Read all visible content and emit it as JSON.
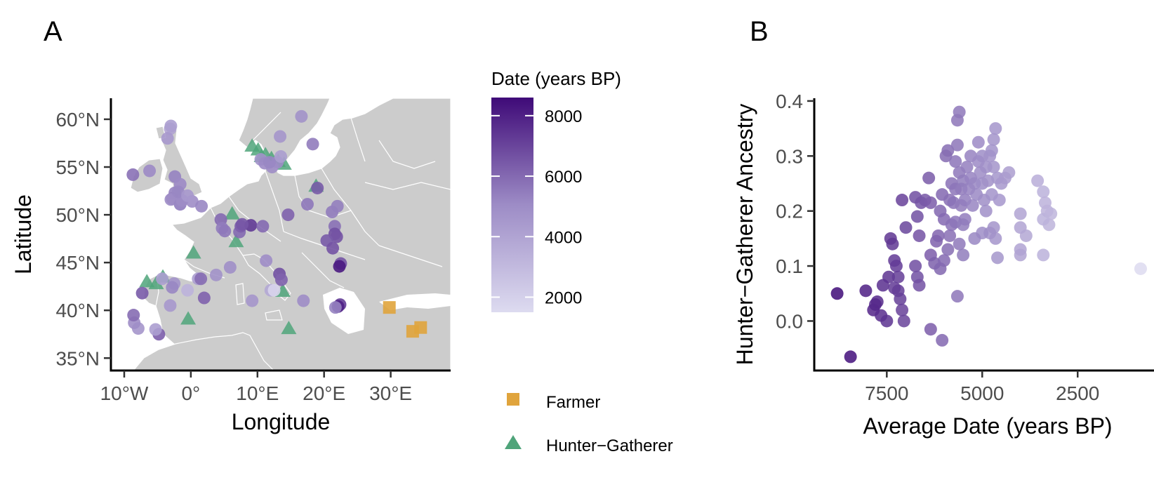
{
  "panels": {
    "a": {
      "letter": "A"
    },
    "b": {
      "letter": "B"
    }
  },
  "chart_data": [
    {
      "type": "scatter",
      "panel": "A",
      "xlabel": "Longitude",
      "ylabel": "Latitude",
      "x_ticks": [
        {
          "value": -10,
          "label": "10°W"
        },
        {
          "value": 0,
          "label": "0°"
        },
        {
          "value": 10,
          "label": "10°E"
        },
        {
          "value": 20,
          "label": "20°E"
        },
        {
          "value": 30,
          "label": "30°E"
        }
      ],
      "y_ticks": [
        {
          "value": 35,
          "label": "35°N"
        },
        {
          "value": 40,
          "label": "40°N"
        },
        {
          "value": 45,
          "label": "45°N"
        },
        {
          "value": 50,
          "label": "50°N"
        },
        {
          "value": 55,
          "label": "55°N"
        },
        {
          "value": 60,
          "label": "60°N"
        }
      ],
      "xlim": [
        -12,
        39
      ],
      "ylim": [
        33.7,
        62.2
      ],
      "background": "map of Europe (land grey #cccccc, borders white)",
      "color_legend": {
        "title": "Date (years BP)",
        "ticks": [
          {
            "value": 2000,
            "label": "2000"
          },
          {
            "value": 4000,
            "label": "4000"
          },
          {
            "value": 6000,
            "label": "6000"
          },
          {
            "value": 8000,
            "label": "8000"
          }
        ],
        "range": [
          1500,
          8600
        ],
        "low_color": "#dddbf0",
        "high_color": "#3f0a78"
      },
      "shape_legend": [
        {
          "label": "Farmer",
          "shape": "square",
          "color": "#e0a43c"
        },
        {
          "label": "Hunter−Gatherer",
          "shape": "triangle",
          "color": "#4fa47a"
        }
      ],
      "series": [
        {
          "name": "Farmer",
          "marker": "square",
          "color": "#e0a43c",
          "points": [
            [
              29.8,
              40.3
            ],
            [
              33.3,
              37.8
            ],
            [
              34.5,
              38.2
            ]
          ]
        },
        {
          "name": "Hunter−Gatherer",
          "marker": "triangle",
          "color": "#4fa47a",
          "points": [
            [
              9.2,
              57.2
            ],
            [
              10.1,
              56.8
            ],
            [
              11.2,
              56.3
            ],
            [
              12.1,
              55.9
            ],
            [
              13.1,
              55.6
            ],
            [
              14.0,
              55.3
            ],
            [
              10.6,
              56.1
            ],
            [
              6.2,
              50.1
            ],
            [
              6.8,
              47.2
            ],
            [
              0.4,
              46.0
            ],
            [
              -4.2,
              43.5
            ],
            [
              -6.6,
              43.0
            ],
            [
              -5.2,
              42.8
            ],
            [
              -0.4,
              39.1
            ],
            [
              14.7,
              38.1
            ],
            [
              18.8,
              53.0
            ],
            [
              13.8,
              42.0
            ]
          ]
        },
        {
          "name": "",
          "marker": "circle",
          "points": [
            [
              -3.1,
              59.0,
              4000
            ],
            [
              -3.5,
              58.0,
              4500
            ],
            [
              -3.0,
              59.3,
              4200
            ],
            [
              -2.4,
              54.0,
              5300
            ],
            [
              -1.6,
              53.2,
              5100
            ],
            [
              -2.4,
              52.3,
              5300
            ],
            [
              -2.8,
              51.7,
              5400
            ],
            [
              -3.0,
              51.6,
              5000
            ],
            [
              -1.6,
              51.1,
              5200
            ],
            [
              0.2,
              51.4,
              5000
            ],
            [
              1.6,
              50.9,
              5200
            ],
            [
              -8.7,
              54.2,
              5800
            ],
            [
              -6.2,
              54.6,
              5100
            ],
            [
              4.5,
              49.5,
              6000
            ],
            [
              4.7,
              48.6,
              5500
            ],
            [
              5.1,
              48.3,
              5600
            ],
            [
              7.3,
              48.2,
              6000
            ],
            [
              7.5,
              48.8,
              6300
            ],
            [
              9.0,
              48.9,
              7300
            ],
            [
              10.8,
              48.8,
              6000
            ],
            [
              7.7,
              49.0,
              6500
            ],
            [
              10.5,
              55.8,
              4700
            ],
            [
              11.1,
              55.4,
              5100
            ],
            [
              12.2,
              55.0,
              5000
            ],
            [
              13.0,
              55.5,
              5000
            ],
            [
              13.5,
              56.1,
              4300
            ],
            [
              11.8,
              55.5,
              5200
            ],
            [
              13.4,
              58.2,
              4600
            ],
            [
              16.6,
              60.3,
              4800
            ],
            [
              18.3,
              57.4,
              5500
            ],
            [
              14.6,
              50.0,
              6200
            ],
            [
              17.5,
              51.1,
              5600
            ],
            [
              19.0,
              52.8,
              6400
            ],
            [
              21.2,
              50.3,
              5500
            ],
            [
              22.0,
              50.9,
              5400
            ],
            [
              21.6,
              48.8,
              5800
            ],
            [
              21.6,
              48.0,
              6700
            ],
            [
              21.9,
              47.7,
              6600
            ],
            [
              20.4,
              47.3,
              6400
            ],
            [
              21.3,
              46.5,
              6600
            ],
            [
              22.5,
              44.9,
              6600
            ],
            [
              22.3,
              44.6,
              8200
            ],
            [
              22.4,
              40.6,
              7200
            ],
            [
              22.1,
              40.4,
              8000
            ],
            [
              21.7,
              40.3,
              5300
            ],
            [
              16.9,
              41.0,
              5000
            ],
            [
              13.3,
              43.8,
              6700
            ],
            [
              13.6,
              43.2,
              6200
            ],
            [
              12.0,
              42.1,
              3800
            ],
            [
              12.5,
              42.1,
              1800
            ],
            [
              11.3,
              45.2,
              5000
            ],
            [
              9.2,
              41.0,
              4600
            ],
            [
              3.8,
              43.7,
              4800
            ],
            [
              5.9,
              44.5,
              4900
            ],
            [
              2.0,
              41.3,
              6200
            ],
            [
              1.1,
              43.3,
              4300
            ],
            [
              1.5,
              43.3,
              5900
            ],
            [
              -0.5,
              42.1,
              3300
            ],
            [
              -2.5,
              42.8,
              4700
            ],
            [
              -2.8,
              42.4,
              5200
            ],
            [
              -3.1,
              40.5,
              4500
            ],
            [
              -4.8,
              37.5,
              6300
            ],
            [
              -5.3,
              38.0,
              4200
            ],
            [
              -7.9,
              38.1,
              4600
            ],
            [
              -8.5,
              38.7,
              5000
            ],
            [
              -8.6,
              39.5,
              5900
            ],
            [
              -7.3,
              41.8,
              6400
            ],
            [
              -4.3,
              43.3,
              4200
            ],
            [
              -1.6,
              51.1,
              5200
            ],
            [
              -1.3,
              51.5,
              5000
            ],
            [
              -1.9,
              52.4,
              5200
            ],
            [
              -0.5,
              52.0,
              4500
            ]
          ]
        }
      ]
    },
    {
      "type": "scatter",
      "panel": "B",
      "xlabel": "Average Date (years BP)",
      "ylabel": "Hunter−Gatherer Ancestry",
      "x_reversed": true,
      "xlim": [
        9400,
        500
      ],
      "ylim": [
        -0.09,
        0.405
      ],
      "x_ticks": [
        {
          "value": 7500,
          "label": "7500"
        },
        {
          "value": 5000,
          "label": "5000"
        },
        {
          "value": 2500,
          "label": "2500"
        }
      ],
      "y_ticks": [
        {
          "value": 0.0,
          "label": "0.0"
        },
        {
          "value": 0.1,
          "label": "0.1"
        },
        {
          "value": 0.2,
          "label": "0.2"
        },
        {
          "value": 0.3,
          "label": "0.3"
        },
        {
          "value": 0.4,
          "label": "0.4"
        }
      ],
      "points": [
        [
          8800,
          0.05
        ],
        [
          8450,
          -0.065
        ],
        [
          8050,
          0.055
        ],
        [
          7850,
          0.02
        ],
        [
          7800,
          0.03
        ],
        [
          7750,
          0.035
        ],
        [
          7650,
          0.01
        ],
        [
          7600,
          0.065
        ],
        [
          7500,
          0.0
        ],
        [
          7450,
          0.08
        ],
        [
          7400,
          0.15
        ],
        [
          7350,
          0.14
        ],
        [
          7300,
          0.11
        ],
        [
          7250,
          0.1
        ],
        [
          7300,
          0.06
        ],
        [
          7200,
          0.055
        ],
        [
          7200,
          0.08
        ],
        [
          7150,
          0.04
        ],
        [
          7100,
          0.02
        ],
        [
          7050,
          0.0
        ],
        [
          7000,
          0.17
        ],
        [
          7100,
          0.22
        ],
        [
          6750,
          0.225
        ],
        [
          6700,
          0.19
        ],
        [
          6650,
          0.155
        ],
        [
          6600,
          0.215
        ],
        [
          6750,
          0.1
        ],
        [
          6700,
          0.08
        ],
        [
          6650,
          0.065
        ],
        [
          6500,
          0.22
        ],
        [
          6400,
          0.26
        ],
        [
          6350,
          0.215
        ],
        [
          6350,
          0.12
        ],
        [
          6250,
          0.105
        ],
        [
          6200,
          0.145
        ],
        [
          6150,
          0.155
        ],
        [
          6100,
          0.2
        ],
        [
          6050,
          0.23
        ],
        [
          6000,
          0.185
        ],
        [
          6100,
          0.095
        ],
        [
          6000,
          0.11
        ],
        [
          5900,
          0.13
        ],
        [
          5850,
          0.155
        ],
        [
          5950,
          0.3
        ],
        [
          5900,
          0.31
        ],
        [
          5850,
          0.22
        ],
        [
          5800,
          0.25
        ],
        [
          5750,
          0.215
        ],
        [
          5700,
          0.24
        ],
        [
          5700,
          0.29
        ],
        [
          5650,
          0.32
        ],
        [
          5650,
          0.365
        ],
        [
          5600,
          0.38
        ],
        [
          5600,
          0.27
        ],
        [
          5550,
          0.24
        ],
        [
          5550,
          0.21
        ],
        [
          5500,
          0.255
        ],
        [
          5450,
          0.22
        ],
        [
          5450,
          0.185
        ],
        [
          5400,
          0.28
        ],
        [
          5350,
          0.24
        ],
        [
          5300,
          0.3
        ],
        [
          5300,
          0.26
        ],
        [
          5250,
          0.21
        ],
        [
          5200,
          0.25
        ],
        [
          5150,
          0.23
        ],
        [
          5100,
          0.29
        ],
        [
          5100,
          0.325
        ],
        [
          5050,
          0.27
        ],
        [
          5000,
          0.3
        ],
        [
          5000,
          0.25
        ],
        [
          4950,
          0.22
        ],
        [
          4900,
          0.2
        ],
        [
          4900,
          0.28
        ],
        [
          4850,
          0.255
        ],
        [
          4800,
          0.3
        ],
        [
          4750,
          0.31
        ],
        [
          4750,
          0.23
        ],
        [
          4700,
          0.28
        ],
        [
          4700,
          0.33
        ],
        [
          4650,
          0.35
        ],
        [
          4600,
          0.26
        ],
        [
          4550,
          0.22
        ],
        [
          4500,
          0.25
        ],
        [
          4700,
          0.17
        ],
        [
          4650,
          0.15
        ],
        [
          4800,
          0.16
        ],
        [
          5000,
          0.16
        ],
        [
          5200,
          0.15
        ],
        [
          5500,
          0.12
        ],
        [
          5600,
          0.14
        ],
        [
          5800,
          0.175
        ],
        [
          5700,
          0.18
        ],
        [
          5500,
          0.175
        ],
        [
          4600,
          0.115
        ],
        [
          4400,
          0.26
        ],
        [
          4300,
          0.27
        ],
        [
          5650,
          0.045
        ],
        [
          6050,
          -0.035
        ],
        [
          6350,
          -0.015
        ],
        [
          4000,
          0.195
        ],
        [
          4000,
          0.17
        ],
        [
          3850,
          0.155
        ],
        [
          4000,
          0.13
        ],
        [
          4000,
          0.12
        ],
        [
          3550,
          0.255
        ],
        [
          3400,
          0.235
        ],
        [
          3350,
          0.215
        ],
        [
          3300,
          0.2
        ],
        [
          3250,
          0.175
        ],
        [
          3400,
          0.185
        ],
        [
          3400,
          0.12
        ],
        [
          3200,
          0.195
        ],
        [
          850,
          0.095
        ]
      ]
    }
  ]
}
